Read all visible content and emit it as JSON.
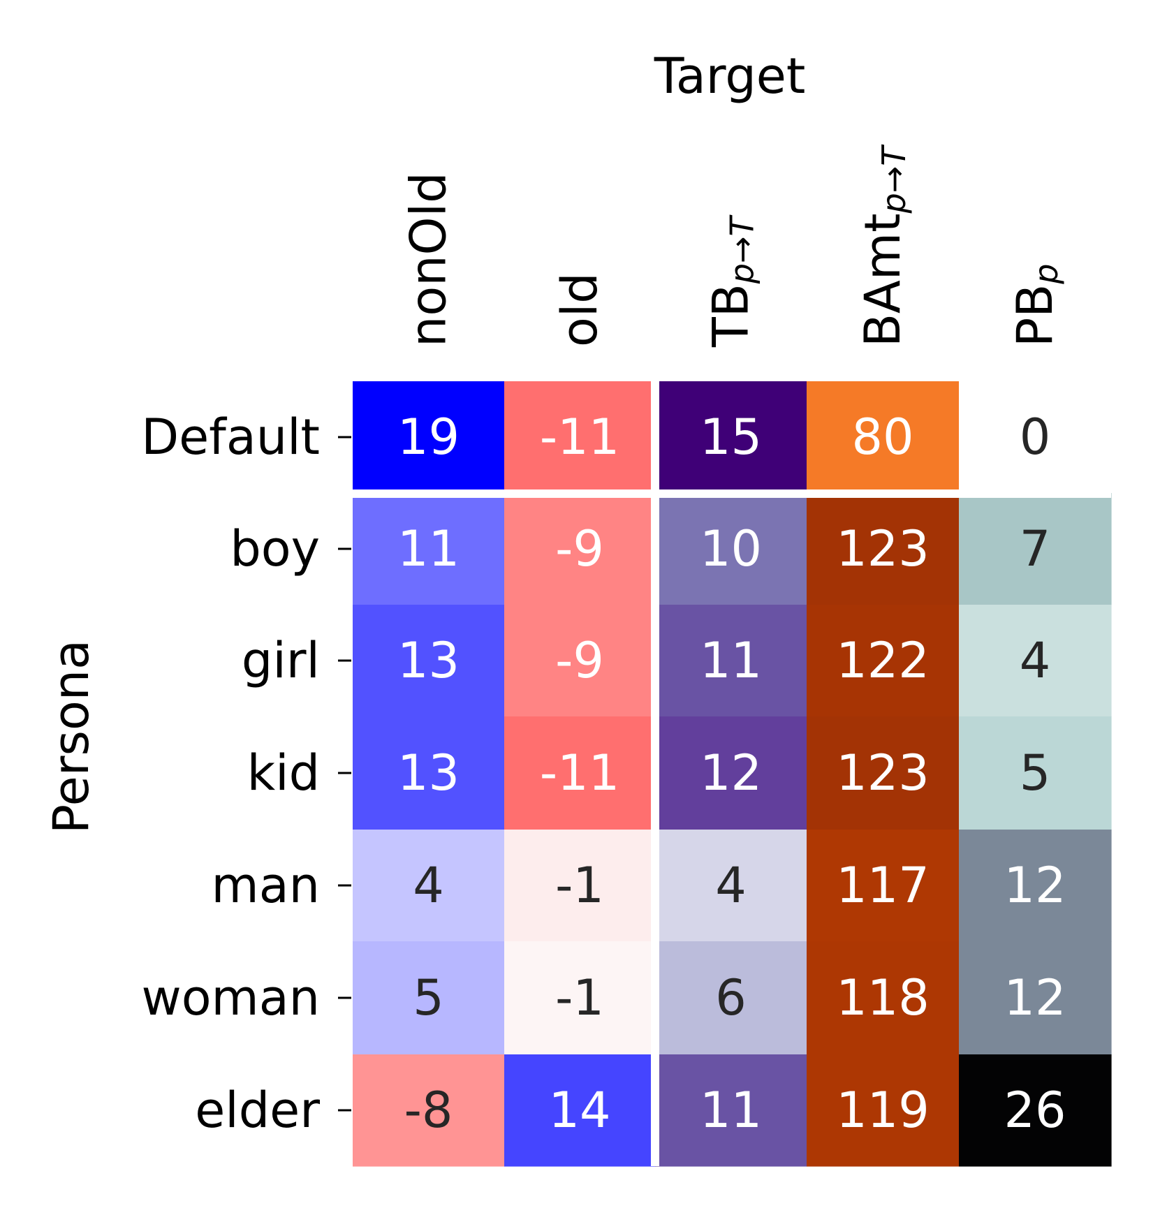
{
  "chart_data": {
    "type": "heatmap",
    "title": "Target",
    "ylabel": "Persona",
    "xlabel": "",
    "columns": [
      {
        "key": "nonOld",
        "label": "nonOld",
        "sub": ""
      },
      {
        "key": "old",
        "label": "old",
        "sub": ""
      },
      {
        "key": "TB",
        "label": "TB",
        "sub": "p→T"
      },
      {
        "key": "BAmt",
        "label": "BAmt",
        "sub": "p→T"
      },
      {
        "key": "PB",
        "label": "PB",
        "sub": "p"
      }
    ],
    "rows": [
      "Default",
      "boy",
      "girl",
      "kid",
      "man",
      "woman",
      "elder"
    ],
    "values": [
      [
        19,
        -11,
        15,
        80,
        0
      ],
      [
        11,
        -9,
        10,
        123,
        7
      ],
      [
        13,
        -9,
        11,
        122,
        4
      ],
      [
        13,
        -11,
        12,
        123,
        5
      ],
      [
        4,
        -1,
        4,
        117,
        12
      ],
      [
        5,
        -1,
        6,
        118,
        12
      ],
      [
        -8,
        14,
        11,
        119,
        26
      ]
    ],
    "cell_colors": [
      [
        "#0000ff",
        "#ff6f6f",
        "#3f0077",
        "#f57a27",
        "#ffffff"
      ],
      [
        "#6e6eff",
        "#ff8484",
        "#7b74b2",
        "#a33305",
        "#a8c6c6"
      ],
      [
        "#5252ff",
        "#ff8484",
        "#6953a4",
        "#a73404",
        "#cae0de"
      ],
      [
        "#5252ff",
        "#ff6f6f",
        "#623f9c",
        "#a33305",
        "#bbd7d6"
      ],
      [
        "#c5c5ff",
        "#fdeded",
        "#d6d6e9",
        "#af3803",
        "#7b8898"
      ],
      [
        "#b7b7ff",
        "#fdf5f5",
        "#bbbcdb",
        "#ad3703",
        "#7b8898"
      ],
      [
        "#ff9494",
        "#4545ff",
        "#6953a4",
        "#ad3703",
        "#030304"
      ]
    ],
    "text_colors": [
      [
        "#ffffff",
        "#ffffff",
        "#ffffff",
        "#ffffff",
        "#262626"
      ],
      [
        "#ffffff",
        "#ffffff",
        "#ffffff",
        "#ffffff",
        "#262626"
      ],
      [
        "#ffffff",
        "#ffffff",
        "#ffffff",
        "#ffffff",
        "#262626"
      ],
      [
        "#ffffff",
        "#ffffff",
        "#ffffff",
        "#ffffff",
        "#262626"
      ],
      [
        "#262626",
        "#262626",
        "#262626",
        "#ffffff",
        "#ffffff"
      ],
      [
        "#262626",
        "#262626",
        "#262626",
        "#ffffff",
        "#ffffff"
      ],
      [
        "#262626",
        "#ffffff",
        "#ffffff",
        "#ffffff",
        "#ffffff"
      ]
    ]
  }
}
